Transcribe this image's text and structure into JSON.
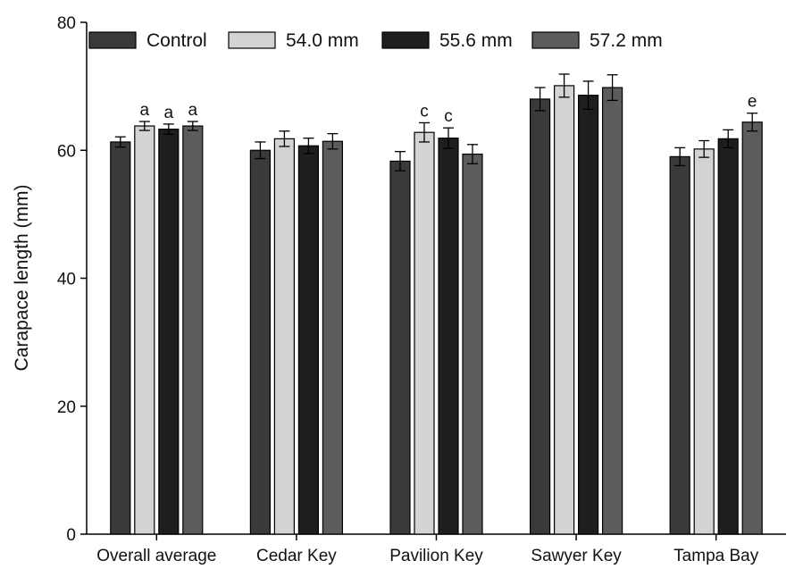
{
  "chart_data": {
    "type": "bar",
    "title": "",
    "xlabel": "",
    "ylabel": "Carapace length (mm)",
    "ylim": [
      0,
      80
    ],
    "yticks": [
      0,
      20,
      40,
      60,
      80
    ],
    "categories": [
      "Overall average",
      "Cedar Key",
      "Pavilion Key",
      "Sawyer Key",
      "Tampa Bay"
    ],
    "series": [
      {
        "name": "Control",
        "color": "#3a3a3a",
        "values": [
          61.3,
          60.0,
          58.3,
          68.0,
          59.0
        ],
        "errors": [
          0.8,
          1.3,
          1.5,
          1.8,
          1.4
        ],
        "labels": [
          "",
          "",
          "",
          "",
          ""
        ]
      },
      {
        "name": "54.0 mm",
        "color": "#d3d3d3",
        "values": [
          63.8,
          61.8,
          62.8,
          70.1,
          60.2
        ],
        "errors": [
          0.7,
          1.2,
          1.5,
          1.8,
          1.3
        ],
        "labels": [
          "a",
          "",
          "c",
          "",
          ""
        ]
      },
      {
        "name": "55.6 mm",
        "color": "#1e1e1e",
        "values": [
          63.3,
          60.7,
          61.9,
          68.6,
          61.8
        ],
        "errors": [
          0.8,
          1.2,
          1.6,
          2.2,
          1.4
        ],
        "labels": [
          "a",
          "",
          "c",
          "",
          ""
        ]
      },
      {
        "name": "57.2 mm",
        "color": "#5c5c5c",
        "values": [
          63.8,
          61.4,
          59.4,
          69.8,
          64.4
        ],
        "errors": [
          0.7,
          1.2,
          1.5,
          2.0,
          1.4
        ],
        "labels": [
          "a",
          "",
          "",
          "",
          "e"
        ]
      }
    ],
    "legend": {
      "placement": "top",
      "columns": 4
    },
    "grid": false,
    "error_bars": true
  }
}
